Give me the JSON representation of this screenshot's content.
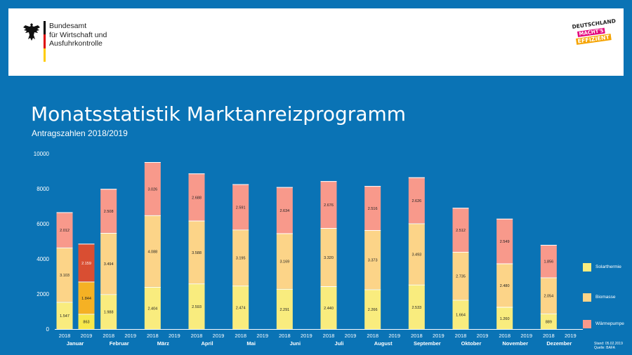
{
  "header": {
    "org_lines": [
      "Bundesamt",
      "für Wirtschaft und",
      "Ausfuhrkontrolle"
    ],
    "campaign_logo": [
      "DEUTSCHLAND",
      "MACHT'S",
      "EFFIZIENT"
    ]
  },
  "title": "Monatsstatistik Marktanreizprogramm",
  "subtitle": "Antragszahlen 2018/2019",
  "colors": {
    "background": "#0a73b5",
    "solar": "#f9ec7e",
    "biomasse": "#fcd488",
    "waerme": "#f8998b",
    "solar_2019": "#f7e84c",
    "biomasse_2019": "#f5b124",
    "waerme_2019": "#d94e32"
  },
  "legend": {
    "solar": "Solarthermie",
    "biomasse": "Biomasse",
    "waerme": "Wärmepumpe"
  },
  "footer": {
    "stand": "Stand: 05.02.2019",
    "quelle": "Quelle: BAFA"
  },
  "chart_data": {
    "type": "bar",
    "stacked": true,
    "title": "Monatsstatistik Marktanreizprogramm",
    "subtitle": "Antragszahlen 2018/2019",
    "ylim": [
      0,
      10000
    ],
    "yticks": [
      "0",
      "2000",
      "4000",
      "6000",
      "8000",
      "10000"
    ],
    "categories": [
      "Januar",
      "Februar",
      "März",
      "April",
      "Mai",
      "Juni",
      "Juli",
      "August",
      "September",
      "Oktober",
      "November",
      "Dezember"
    ],
    "years": [
      "2018",
      "2019"
    ],
    "series_order": [
      "Solarthermie",
      "Biomasse",
      "Wärmepumpe"
    ],
    "bars": [
      {
        "month": "Januar",
        "year": "2018",
        "values": [
          1547,
          3103,
          2012
        ],
        "labels": [
          "1.547",
          "3.103",
          "2.012"
        ]
      },
      {
        "month": "Januar",
        "year": "2019",
        "values": [
          863,
          1844,
          2159
        ],
        "labels": [
          "863",
          "1.844",
          "2.159"
        ]
      },
      {
        "month": "Februar",
        "year": "2018",
        "values": [
          1988,
          3494,
          2508
        ],
        "labels": [
          "1.988",
          "3.494",
          "2.508"
        ]
      },
      {
        "month": "März",
        "year": "2018",
        "values": [
          2404,
          4088,
          3026
        ],
        "labels": [
          "2.404",
          "4.088",
          "3.026"
        ]
      },
      {
        "month": "April",
        "year": "2018",
        "values": [
          2593,
          3588,
          2688
        ],
        "labels": [
          "2.593",
          "3.588",
          "2.688"
        ]
      },
      {
        "month": "Mai",
        "year": "2018",
        "values": [
          2474,
          3195,
          2591
        ],
        "labels": [
          "2.474",
          "3.195",
          "2.591"
        ]
      },
      {
        "month": "Juni",
        "year": "2018",
        "values": [
          2291,
          3169,
          2634
        ],
        "labels": [
          "2.291",
          "3.169",
          "2.634"
        ]
      },
      {
        "month": "Juli",
        "year": "2018",
        "values": [
          2440,
          3320,
          2676
        ],
        "labels": [
          "2.440",
          "3.320",
          "2.676"
        ]
      },
      {
        "month": "August",
        "year": "2018",
        "values": [
          2266,
          3373,
          2516
        ],
        "labels": [
          "2.266",
          "3.373",
          "2.516"
        ]
      },
      {
        "month": "September",
        "year": "2018",
        "values": [
          2533,
          3493,
          2626
        ],
        "labels": [
          "2.533",
          "3.493",
          "2.626"
        ]
      },
      {
        "month": "Oktober",
        "year": "2018",
        "values": [
          1664,
          2735,
          2512
        ],
        "labels": [
          "1.664",
          "2.735",
          "2.512"
        ]
      },
      {
        "month": "November",
        "year": "2018",
        "values": [
          1260,
          2480,
          2549
        ],
        "labels": [
          "1.260",
          "2.480",
          "2.549"
        ]
      },
      {
        "month": "Dezember",
        "year": "2018",
        "values": [
          889,
          2054,
          1856
        ],
        "labels": [
          "889",
          "2.054",
          "1.856"
        ]
      }
    ]
  }
}
